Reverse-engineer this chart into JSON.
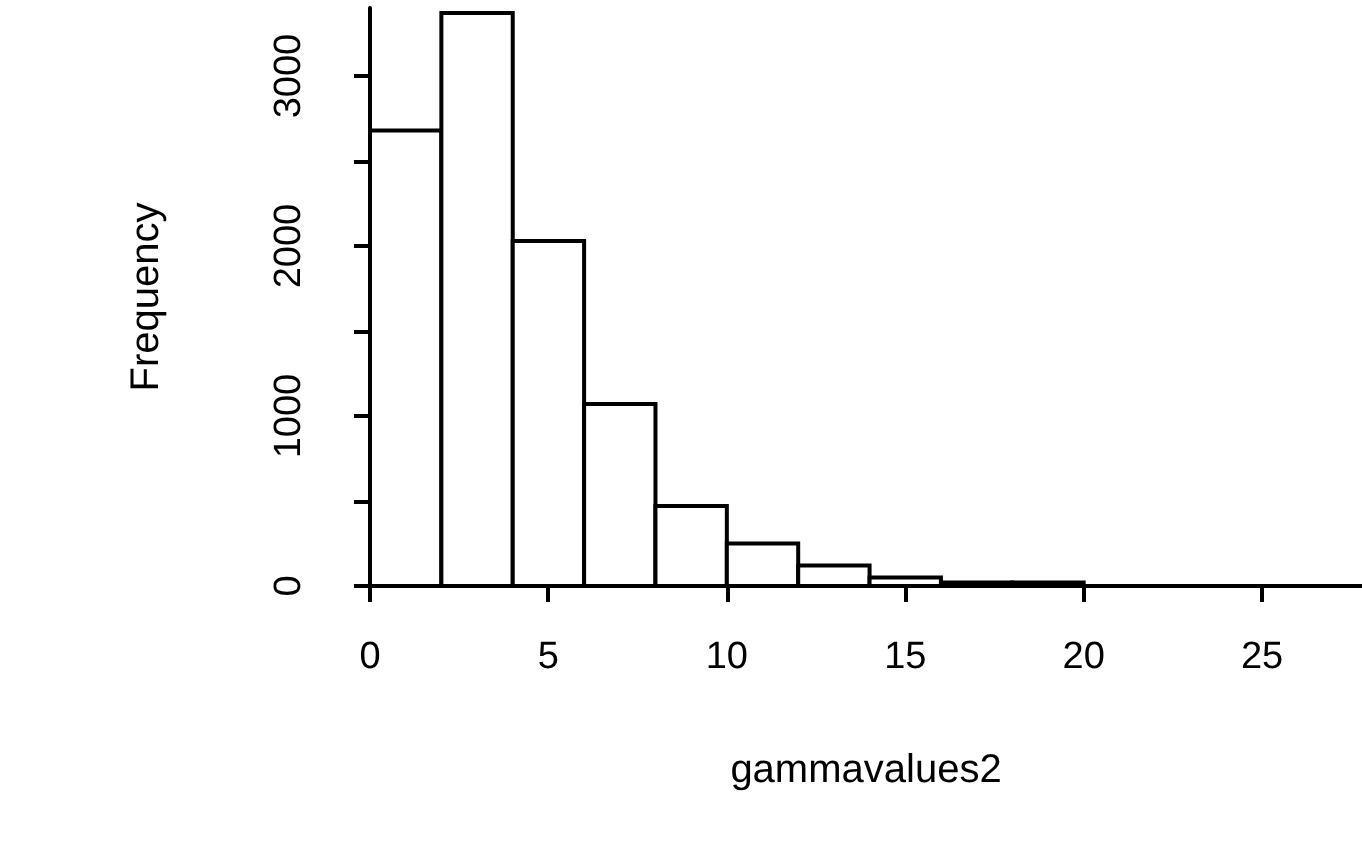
{
  "chart_data": {
    "type": "histogram",
    "xlabel": "gammavalues2",
    "ylabel": "Frequency",
    "bins": [
      0,
      2,
      4,
      6,
      8,
      10,
      12,
      14,
      16,
      18,
      20
    ],
    "values": [
      2680,
      3370,
      2030,
      1070,
      470,
      250,
      120,
      50,
      20,
      20
    ],
    "color": "#ffffff",
    "xlim": [
      0,
      27.8
    ],
    "xticks": [
      0,
      5,
      10,
      15,
      20,
      25
    ],
    "ylim": [
      0,
      3400
    ],
    "yticks": [
      0,
      {
        "value": 500,
        "label": null
      },
      1000,
      {
        "value": 1500,
        "label": null
      },
      2000,
      {
        "value": 2500,
        "label": null
      },
      3000
    ],
    "grid": false
  }
}
